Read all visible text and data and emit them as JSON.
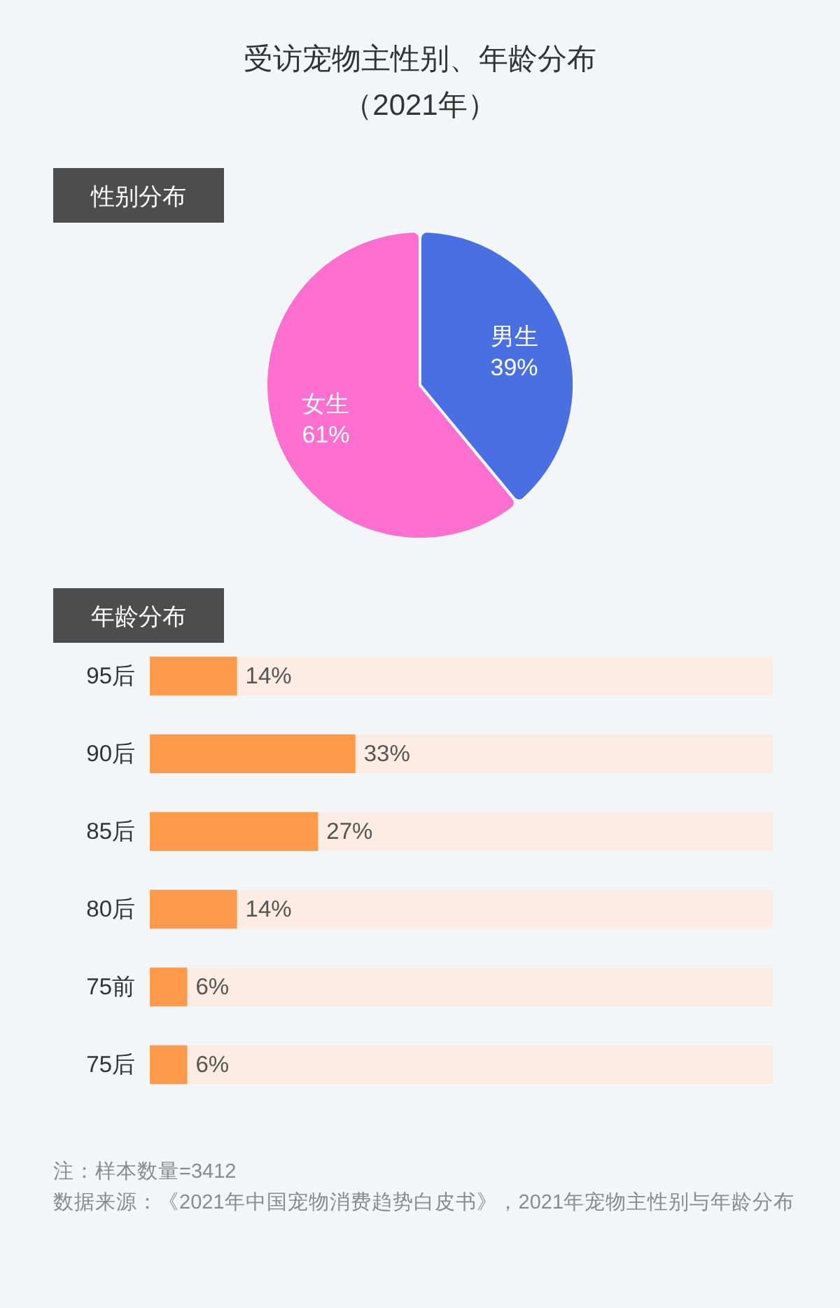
{
  "chart_data": [
    {
      "type": "other",
      "title": "受访宠物主性别、年龄分布",
      "subtitle": "（2021年）"
    },
    {
      "type": "pie",
      "title": "性别分布",
      "categories": [
        "男生",
        "女生"
      ],
      "values": [
        39,
        61
      ],
      "colors": [
        "#4a6fe2",
        "#ff6fcf"
      ],
      "value_labels": [
        "39%",
        "61%"
      ]
    },
    {
      "type": "bar",
      "orientation": "horizontal",
      "title": "年龄分布",
      "categories": [
        "95后",
        "90后",
        "85后",
        "80后",
        "75前",
        "75后"
      ],
      "values": [
        14,
        33,
        27,
        14,
        6,
        6
      ],
      "color": "#fd9a4b",
      "xlim": [
        0,
        100
      ],
      "tick_labels": "y",
      "value_labels": [
        "14%",
        "33%",
        "27%",
        "14%",
        "6%",
        "6%"
      ],
      "annotations": [
        "注：样本数量=3412",
        "数据来源：《2021年中国宠物消费趋势白皮书》，2021年宠物主性别与年龄分布"
      ]
    }
  ]
}
